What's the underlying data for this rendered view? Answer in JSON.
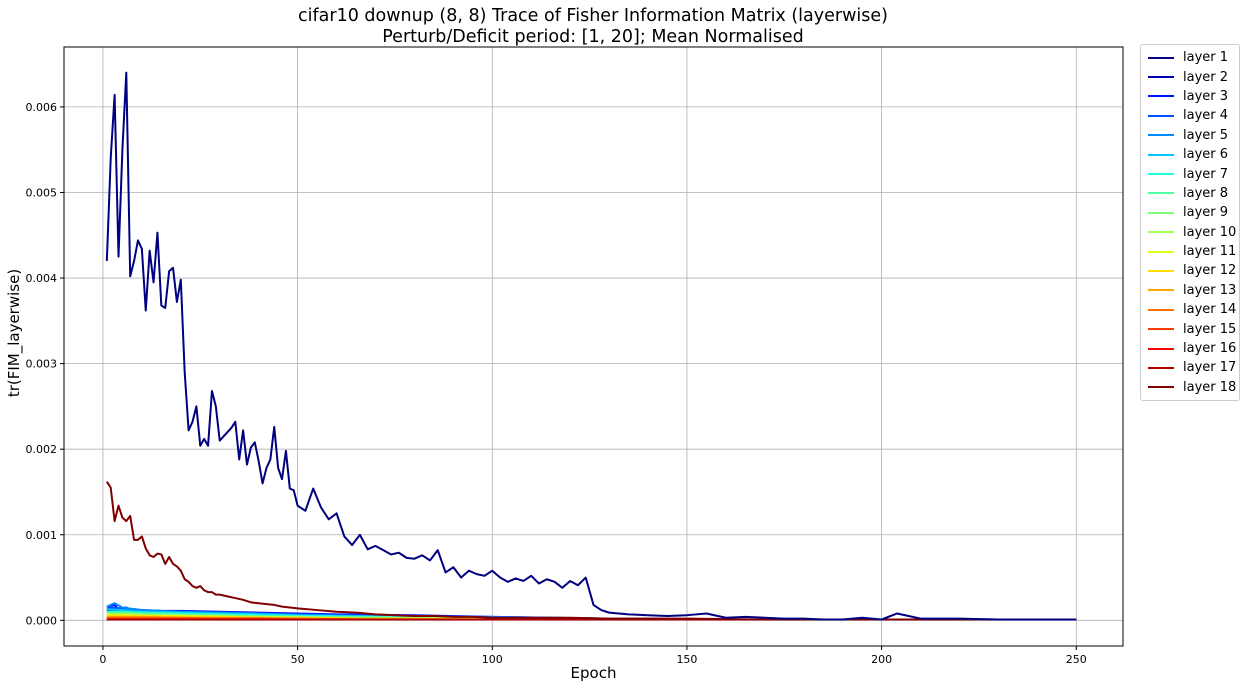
{
  "chart_data": {
    "type": "line",
    "title": "cifar10 downup (8, 8) Trace of Fisher Information Matrix (layerwise)",
    "subtitle": "Perturb/Deficit period: [1, 20]; Mean Normalised",
    "xlabel": "Epoch",
    "ylabel": "tr(FIM_layerwise)",
    "xlim": [
      -10,
      262
    ],
    "ylim": [
      -0.0003,
      0.0067
    ],
    "xticks": [
      0,
      50,
      100,
      150,
      200,
      250
    ],
    "yticks": [
      0.0,
      0.001,
      0.002,
      0.003,
      0.004,
      0.005,
      0.006
    ],
    "ytick_labels": [
      "0.000",
      "0.001",
      "0.002",
      "0.003",
      "0.004",
      "0.005",
      "0.006"
    ],
    "grid": true,
    "legend_position": "outside-right",
    "series": [
      {
        "name": "layer 1",
        "color": "#000080",
        "x": [
          1,
          2,
          3,
          4,
          5,
          6,
          7,
          8,
          9,
          10,
          11,
          12,
          13,
          14,
          15,
          16,
          17,
          18,
          19,
          20,
          21,
          22,
          23,
          24,
          25,
          26,
          27,
          28,
          29,
          30,
          31,
          32,
          33,
          34,
          35,
          36,
          37,
          38,
          39,
          40,
          41,
          42,
          43,
          44,
          45,
          46,
          47,
          48,
          49,
          50,
          52,
          54,
          56,
          58,
          60,
          62,
          64,
          66,
          68,
          70,
          72,
          74,
          76,
          78,
          80,
          82,
          84,
          86,
          88,
          90,
          92,
          94,
          96,
          98,
          100,
          102,
          104,
          106,
          108,
          110,
          112,
          114,
          116,
          118,
          120,
          122,
          124,
          126,
          128,
          130,
          135,
          140,
          145,
          150,
          155,
          160,
          165,
          170,
          175,
          180,
          185,
          190,
          195,
          200,
          204,
          210,
          220,
          230,
          240,
          250
        ],
        "y": [
          0.0042,
          0.0054,
          0.00614,
          0.00425,
          0.0055,
          0.0064,
          0.00402,
          0.0042,
          0.00444,
          0.00434,
          0.00362,
          0.00432,
          0.00395,
          0.00453,
          0.00368,
          0.00365,
          0.00408,
          0.00412,
          0.00372,
          0.00398,
          0.0029,
          0.00222,
          0.00232,
          0.0025,
          0.00204,
          0.00212,
          0.00204,
          0.00268,
          0.0025,
          0.0021,
          0.00215,
          0.0022,
          0.00225,
          0.00232,
          0.00188,
          0.00222,
          0.00182,
          0.00202,
          0.00208,
          0.00186,
          0.0016,
          0.00178,
          0.00188,
          0.00226,
          0.00178,
          0.00165,
          0.00198,
          0.00154,
          0.00152,
          0.00134,
          0.00128,
          0.00154,
          0.00132,
          0.00118,
          0.00125,
          0.00098,
          0.00088,
          0.001,
          0.00083,
          0.00087,
          0.00082,
          0.00077,
          0.00079,
          0.00073,
          0.00072,
          0.00076,
          0.0007,
          0.00082,
          0.00056,
          0.00062,
          0.0005,
          0.00058,
          0.00054,
          0.00052,
          0.00058,
          0.0005,
          0.00045,
          0.00049,
          0.00046,
          0.00052,
          0.00043,
          0.00048,
          0.00045,
          0.00038,
          0.00046,
          0.00041,
          0.0005,
          0.00018,
          0.00012,
          9e-05,
          7e-05,
          6e-05,
          5e-05,
          6e-05,
          8e-05,
          3e-05,
          4e-05,
          3e-05,
          2e-05,
          2e-05,
          1e-05,
          1e-05,
          3e-05,
          1e-05,
          8e-05,
          2e-05,
          2e-05,
          1e-05,
          1e-05,
          1e-05
        ]
      },
      {
        "name": "layer 2",
        "color": "#0000b3",
        "x": [
          1,
          5,
          10,
          20,
          30,
          40,
          50,
          60,
          80,
          100,
          130,
          160,
          200,
          250
        ],
        "y": [
          0.00012,
          0.00011,
          0.0001,
          9e-05,
          8e-05,
          7e-05,
          6e-05,
          5e-05,
          4e-05,
          3e-05,
          2e-05,
          1e-05,
          1e-05,
          1e-05
        ]
      },
      {
        "name": "layer 3",
        "color": "#0014ff",
        "x": [
          1,
          2,
          3,
          4,
          5,
          6,
          7,
          8,
          10,
          15,
          20,
          30,
          40,
          50,
          60,
          80,
          100,
          130,
          160,
          200,
          250
        ],
        "y": [
          0.00016,
          0.00017,
          0.00018,
          0.00013,
          0.00014,
          0.00015,
          0.00012,
          0.00013,
          0.00012,
          0.00011,
          0.00011,
          0.0001,
          9e-05,
          8e-05,
          7e-05,
          6e-05,
          4e-05,
          2e-05,
          1e-05,
          1e-05,
          1e-05
        ]
      },
      {
        "name": "layer 4",
        "color": "#0050ff",
        "x": [
          1,
          5,
          10,
          20,
          30,
          40,
          50,
          70,
          100,
          130,
          160,
          200,
          250
        ],
        "y": [
          0.00015,
          0.00014,
          0.00011,
          0.0001,
          9e-05,
          8e-05,
          7e-05,
          5e-05,
          4e-05,
          2e-05,
          1e-05,
          1e-05,
          1e-05
        ]
      },
      {
        "name": "layer 5",
        "color": "#008cff",
        "x": [
          1,
          3,
          5,
          10,
          20,
          30,
          40,
          50,
          70,
          100,
          130,
          160,
          200,
          250
        ],
        "y": [
          0.00016,
          0.0002,
          0.00015,
          0.00012,
          0.0001,
          9e-05,
          8e-05,
          6e-05,
          5e-05,
          3e-05,
          2e-05,
          1e-05,
          1e-05,
          1e-05
        ]
      },
      {
        "name": "layer 6",
        "color": "#00c4ff",
        "x": [
          1,
          5,
          10,
          20,
          30,
          40,
          50,
          70,
          100,
          130,
          160,
          200,
          250
        ],
        "y": [
          0.00013,
          0.00012,
          0.0001,
          9e-05,
          8e-05,
          7e-05,
          6e-05,
          4e-05,
          3e-05,
          2e-05,
          1e-05,
          1e-05,
          1e-05
        ]
      },
      {
        "name": "layer 7",
        "color": "#1fffe0",
        "x": [
          1,
          5,
          10,
          20,
          30,
          40,
          50,
          70,
          100,
          130,
          160,
          200,
          250
        ],
        "y": [
          0.0001,
          0.0001,
          9e-05,
          8e-05,
          7e-05,
          6e-05,
          5e-05,
          4e-05,
          3e-05,
          2e-05,
          1e-05,
          1e-05,
          1e-05
        ]
      },
      {
        "name": "layer 8",
        "color": "#50ffa6",
        "x": [
          1,
          5,
          10,
          20,
          30,
          40,
          50,
          70,
          100,
          130,
          160,
          200,
          250
        ],
        "y": [
          9e-05,
          9e-05,
          8e-05,
          7e-05,
          6e-05,
          5e-05,
          4e-05,
          3e-05,
          2e-05,
          1e-05,
          1e-05,
          1e-05,
          1e-05
        ]
      },
      {
        "name": "layer 9",
        "color": "#7dff7a",
        "x": [
          1,
          5,
          10,
          20,
          30,
          40,
          50,
          70,
          100,
          130,
          160,
          200,
          250
        ],
        "y": [
          8e-05,
          8e-05,
          7e-05,
          6e-05,
          5e-05,
          4e-05,
          4e-05,
          3e-05,
          2e-05,
          1e-05,
          1e-05,
          1e-05,
          1e-05
        ]
      },
      {
        "name": "layer 10",
        "color": "#a9ff4d",
        "x": [
          1,
          5,
          10,
          20,
          30,
          40,
          50,
          70,
          100,
          130,
          160,
          200,
          250
        ],
        "y": [
          7e-05,
          7e-05,
          6e-05,
          5e-05,
          5e-05,
          4e-05,
          3e-05,
          2e-05,
          2e-05,
          1e-05,
          1e-05,
          1e-05,
          1e-05
        ]
      },
      {
        "name": "layer 11",
        "color": "#e0ff17",
        "x": [
          1,
          5,
          10,
          20,
          30,
          40,
          50,
          70,
          100,
          130,
          160,
          200,
          250
        ],
        "y": [
          6e-05,
          6e-05,
          5e-05,
          5e-05,
          4e-05,
          3e-05,
          3e-05,
          2e-05,
          2e-05,
          1e-05,
          1e-05,
          1e-05,
          1e-05
        ]
      },
      {
        "name": "layer 12",
        "color": "#ffe000",
        "x": [
          1,
          5,
          10,
          20,
          30,
          40,
          50,
          70,
          100,
          130,
          160,
          200,
          250
        ],
        "y": [
          5e-05,
          5e-05,
          5e-05,
          4e-05,
          4e-05,
          3e-05,
          3e-05,
          2e-05,
          1e-05,
          1e-05,
          1e-05,
          1e-05,
          1e-05
        ]
      },
      {
        "name": "layer 13",
        "color": "#ffa600",
        "x": [
          1,
          5,
          10,
          20,
          30,
          40,
          50,
          70,
          100,
          130,
          160,
          200,
          250
        ],
        "y": [
          4e-05,
          4e-05,
          4e-05,
          3e-05,
          3e-05,
          3e-05,
          2e-05,
          2e-05,
          1e-05,
          1e-05,
          1e-05,
          1e-05,
          1e-05
        ]
      },
      {
        "name": "layer 14",
        "color": "#ff7000",
        "x": [
          1,
          5,
          10,
          20,
          30,
          40,
          50,
          70,
          100,
          130,
          160,
          200,
          250
        ],
        "y": [
          3e-05,
          3e-05,
          3e-05,
          3e-05,
          2e-05,
          2e-05,
          2e-05,
          1e-05,
          1e-05,
          1e-05,
          1e-05,
          1e-05,
          1e-05
        ]
      },
      {
        "name": "layer 15",
        "color": "#ff3b00",
        "x": [
          1,
          5,
          10,
          20,
          30,
          40,
          50,
          70,
          100,
          130,
          160,
          200,
          250
        ],
        "y": [
          2e-05,
          2e-05,
          2e-05,
          2e-05,
          2e-05,
          2e-05,
          1e-05,
          1e-05,
          1e-05,
          1e-05,
          1e-05,
          1e-05,
          1e-05
        ]
      },
      {
        "name": "layer 16",
        "color": "#f10800",
        "x": [
          1,
          10,
          20,
          40,
          60,
          100,
          130,
          160,
          200,
          250
        ],
        "y": [
          1e-05,
          1e-05,
          1e-05,
          1e-05,
          1e-05,
          1e-05,
          1e-05,
          1e-05,
          1e-05,
          1e-05
        ]
      },
      {
        "name": "layer 17",
        "color": "#b30000",
        "x": [
          1,
          20,
          50,
          100,
          150,
          200,
          250
        ],
        "y": [
          1e-05,
          1e-05,
          1e-05,
          1e-05,
          1e-05,
          1e-05,
          1e-05
        ]
      },
      {
        "name": "layer 18",
        "color": "#800000",
        "x": [
          1,
          2,
          3,
          4,
          5,
          6,
          7,
          8,
          9,
          10,
          11,
          12,
          13,
          14,
          15,
          16,
          17,
          18,
          19,
          20,
          21,
          22,
          23,
          24,
          25,
          26,
          27,
          28,
          29,
          30,
          32,
          34,
          36,
          38,
          40,
          42,
          44,
          46,
          48,
          50,
          55,
          60,
          65,
          70,
          75,
          80,
          85,
          90,
          95,
          100,
          110,
          120,
          130,
          140,
          150,
          170,
          200,
          230,
          250
        ],
        "y": [
          0.00162,
          0.00155,
          0.00116,
          0.00134,
          0.0012,
          0.00116,
          0.00122,
          0.00094,
          0.00094,
          0.00098,
          0.00084,
          0.00076,
          0.00074,
          0.00078,
          0.00077,
          0.00066,
          0.00074,
          0.00066,
          0.00063,
          0.00058,
          0.00048,
          0.00045,
          0.0004,
          0.00038,
          0.0004,
          0.00035,
          0.00033,
          0.00033,
          0.0003,
          0.0003,
          0.00028,
          0.00026,
          0.00024,
          0.00021,
          0.0002,
          0.00019,
          0.00018,
          0.00016,
          0.00015,
          0.00014,
          0.00012,
          0.0001,
          9e-05,
          7e-05,
          6e-05,
          5e-05,
          5e-05,
          4e-05,
          4e-05,
          3e-05,
          3e-05,
          3e-05,
          2e-05,
          2e-05,
          2e-05,
          1e-05,
          1e-05,
          1e-05,
          1e-05
        ]
      }
    ]
  }
}
